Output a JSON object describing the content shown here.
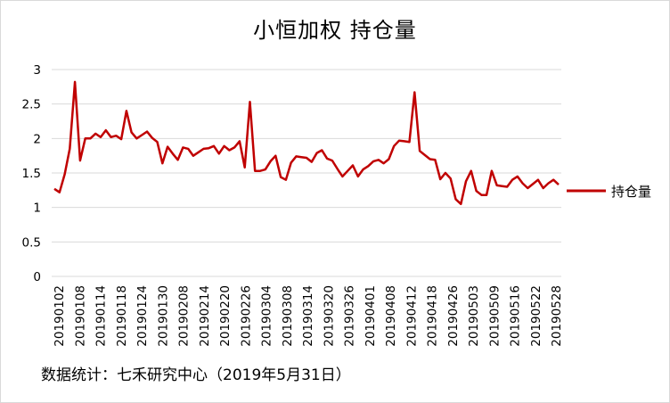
{
  "chart_data": {
    "type": "line",
    "title": "小恒加权 持仓量",
    "xlabel": "",
    "ylabel": "",
    "ylim": [
      0,
      3
    ],
    "yticks": [
      "0",
      "0.5",
      "1",
      "1.5",
      "2",
      "2.5",
      "3"
    ],
    "grid": true,
    "legend_position": "right",
    "x_tick_labels": [
      "20190102",
      "20190108",
      "20190114",
      "20190118",
      "20190124",
      "20190130",
      "20190208",
      "20190214",
      "20190220",
      "20190226",
      "20190304",
      "20190308",
      "20190314",
      "20190320",
      "20190326",
      "20190401",
      "20190408",
      "20190412",
      "20190418",
      "20190426",
      "20190503",
      "20190509",
      "20190516",
      "20190522",
      "20190528"
    ],
    "series": [
      {
        "name": "持仓量",
        "color": "#c00000",
        "values": [
          1.27,
          1.22,
          1.48,
          1.85,
          2.82,
          1.68,
          2.0,
          2.0,
          2.07,
          2.02,
          2.12,
          2.02,
          2.04,
          1.99,
          2.4,
          2.09,
          2.0,
          2.05,
          2.1,
          2.01,
          1.95,
          1.64,
          1.88,
          1.78,
          1.69,
          1.87,
          1.85,
          1.75,
          1.8,
          1.85,
          1.86,
          1.89,
          1.78,
          1.89,
          1.83,
          1.87,
          1.96,
          1.58,
          2.53,
          1.53,
          1.53,
          1.55,
          1.67,
          1.75,
          1.44,
          1.4,
          1.65,
          1.74,
          1.73,
          1.72,
          1.66,
          1.79,
          1.83,
          1.71,
          1.68,
          1.56,
          1.45,
          1.53,
          1.61,
          1.45,
          1.55,
          1.6,
          1.67,
          1.69,
          1.64,
          1.7,
          1.89,
          1.97,
          1.96,
          1.95,
          2.67,
          1.82,
          1.76,
          1.7,
          1.69,
          1.41,
          1.5,
          1.42,
          1.12,
          1.05,
          1.38,
          1.53,
          1.24,
          1.18,
          1.18,
          1.53,
          1.32,
          1.31,
          1.3,
          1.4,
          1.45,
          1.35,
          1.28,
          1.34,
          1.4,
          1.28,
          1.35,
          1.4,
          1.33
        ]
      }
    ]
  },
  "footer": {
    "source": "数据统计：七禾研究中心（2019年5月31日）"
  }
}
